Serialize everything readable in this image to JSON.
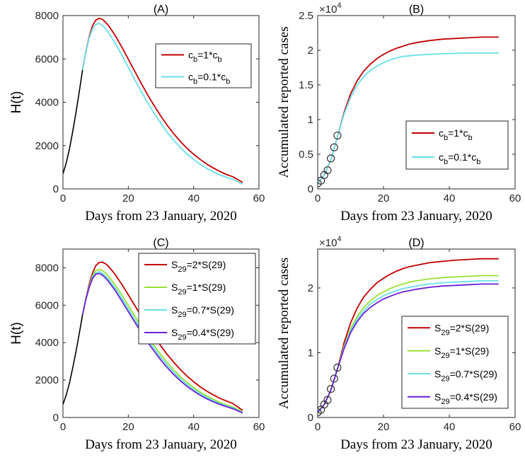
{
  "chart_data": [
    {
      "panel": "A",
      "type": "line",
      "title": "(A)",
      "xlabel": "Days from 23 January, 2020",
      "ylabel": "H(t)",
      "xlim": [
        0,
        60
      ],
      "ylim": [
        0,
        8000
      ],
      "xticks": [
        0,
        20,
        40,
        60
      ],
      "yticks": [
        0,
        2000,
        4000,
        6000,
        8000
      ],
      "legend": "upper-right",
      "series": [
        {
          "name": "c_b=1*c_b",
          "legend_main": "c",
          "legend_sub": "b",
          "legend_rest": "=1*c",
          "legend_sub2": "b",
          "color": "#c00000",
          "x": [
            6,
            7,
            8,
            9,
            10,
            11,
            12,
            13,
            14,
            16,
            18,
            20,
            22,
            24,
            26,
            28,
            30,
            32,
            34,
            36,
            38,
            40,
            42,
            44,
            46,
            48,
            50,
            52,
            55
          ],
          "y": [
            5500,
            6320,
            7000,
            7520,
            7780,
            7880,
            7830,
            7700,
            7530,
            7080,
            6550,
            5990,
            5420,
            4860,
            4320,
            3820,
            3350,
            2920,
            2530,
            2180,
            1870,
            1600,
            1360,
            1150,
            970,
            810,
            670,
            560,
            300
          ]
        },
        {
          "name": "c_b=0.1*c_b",
          "legend_main": "c",
          "legend_sub": "b",
          "legend_rest": "=0.1*c",
          "legend_sub2": "b",
          "color": "#66e0e6",
          "x": [
            6,
            7,
            8,
            9,
            10,
            11,
            12,
            13,
            14,
            16,
            18,
            20,
            22,
            24,
            26,
            28,
            30,
            32,
            34,
            36,
            38,
            40,
            42,
            44,
            46,
            48,
            50,
            52,
            55
          ],
          "y": [
            5500,
            6300,
            6950,
            7380,
            7580,
            7640,
            7560,
            7400,
            7200,
            6720,
            6180,
            5610,
            5040,
            4490,
            3960,
            3470,
            3020,
            2600,
            2230,
            1900,
            1610,
            1360,
            1140,
            950,
            790,
            650,
            540,
            440,
            220
          ]
        }
      ],
      "history": {
        "color": "#000000",
        "x": [
          0,
          1,
          2,
          3,
          4,
          5,
          6
        ],
        "y": [
          700,
          1200,
          1850,
          2650,
          3550,
          4500,
          5500
        ]
      }
    },
    {
      "panel": "B",
      "type": "line",
      "title": "(B)",
      "xlabel": "Days from 23 January, 2020",
      "ylabel": "Accumulated reported cases",
      "exponent_base": "×10",
      "exponent_power": "4",
      "xlim": [
        0,
        60
      ],
      "ylim": [
        0,
        2.5
      ],
      "xticks": [
        0,
        20,
        40,
        60
      ],
      "yticks": [
        0,
        0.5,
        1,
        1.5,
        2,
        2.5
      ],
      "ytick_labels": [
        "0",
        "0.5",
        "1",
        "1.5",
        "2",
        "2.5"
      ],
      "legend": "lower-right",
      "series": [
        {
          "name": "c_b=1*c_b",
          "legend_main": "c",
          "legend_sub": "b",
          "legend_rest": "=1*c",
          "legend_sub2": "b",
          "color": "#c00000",
          "x": [
            0,
            2,
            4,
            6,
            8,
            10,
            12,
            14,
            16,
            18,
            20,
            22,
            24,
            26,
            28,
            30,
            34,
            38,
            42,
            46,
            50,
            55
          ],
          "y": [
            0.08,
            0.2,
            0.42,
            0.75,
            1.1,
            1.37,
            1.56,
            1.7,
            1.8,
            1.88,
            1.94,
            1.99,
            2.03,
            2.06,
            2.09,
            2.11,
            2.14,
            2.16,
            2.17,
            2.18,
            2.19,
            2.19
          ]
        },
        {
          "name": "c_b=0.1*c_b",
          "legend_main": "c",
          "legend_sub": "b",
          "legend_rest": "=0.1*c",
          "legend_sub2": "b",
          "color": "#66e0e6",
          "x": [
            0,
            2,
            4,
            6,
            8,
            10,
            12,
            14,
            16,
            18,
            20,
            22,
            24,
            26,
            28,
            30,
            34,
            38,
            42,
            46,
            50,
            55
          ],
          "y": [
            0.08,
            0.2,
            0.42,
            0.75,
            1.08,
            1.32,
            1.5,
            1.62,
            1.71,
            1.77,
            1.82,
            1.86,
            1.89,
            1.91,
            1.92,
            1.93,
            1.94,
            1.95,
            1.955,
            1.96,
            1.96,
            1.96
          ]
        }
      ],
      "observed": {
        "marker": "circle",
        "x": [
          0,
          1,
          2,
          3,
          4,
          5,
          6
        ],
        "y": [
          0.08,
          0.12,
          0.2,
          0.27,
          0.44,
          0.6,
          0.77
        ]
      }
    },
    {
      "panel": "C",
      "type": "line",
      "title": "(C)",
      "xlabel": "Days from 23 January, 2020",
      "ylabel": "H(t)",
      "xlim": [
        0,
        60
      ],
      "ylim": [
        0,
        9000
      ],
      "xticks": [
        0,
        20,
        40,
        60
      ],
      "yticks": [
        0,
        2000,
        4000,
        6000,
        8000
      ],
      "legend": "upper-right",
      "series": [
        {
          "name": "S_29=2*S(29)",
          "legend_main": "S",
          "legend_sub": "29",
          "legend_rest": "=2*S(29)",
          "color": "#c00000",
          "x": [
            6,
            7,
            8,
            9,
            10,
            11,
            12,
            13,
            14,
            16,
            18,
            20,
            22,
            24,
            26,
            28,
            30,
            32,
            34,
            36,
            38,
            40,
            42,
            44,
            46,
            48,
            50,
            52,
            55
          ],
          "y": [
            5500,
            6350,
            7100,
            7700,
            8100,
            8280,
            8300,
            8220,
            8070,
            7640,
            7120,
            6560,
            5980,
            5400,
            4840,
            4310,
            3810,
            3350,
            2930,
            2550,
            2210,
            1910,
            1640,
            1410,
            1210,
            1030,
            880,
            750,
            380
          ]
        },
        {
          "name": "S_29=1*S(29)",
          "legend_main": "S",
          "legend_sub": "29",
          "legend_rest": "=1*S(29)",
          "color": "#99e033",
          "x": [
            6,
            7,
            8,
            9,
            10,
            11,
            12,
            13,
            14,
            16,
            18,
            20,
            22,
            24,
            26,
            28,
            30,
            32,
            34,
            36,
            38,
            40,
            42,
            44,
            46,
            48,
            50,
            52,
            55
          ],
          "y": [
            5500,
            6330,
            7000,
            7560,
            7840,
            7920,
            7860,
            7720,
            7540,
            7080,
            6550,
            5990,
            5420,
            4860,
            4320,
            3820,
            3350,
            2920,
            2530,
            2180,
            1870,
            1600,
            1360,
            1150,
            970,
            810,
            670,
            560,
            300
          ]
        },
        {
          "name": "S_29=0.7*S(29)",
          "legend_main": "S",
          "legend_sub": "29",
          "legend_rest": "=0.7*S(29)",
          "color": "#66e0e6",
          "x": [
            6,
            7,
            8,
            9,
            10,
            11,
            12,
            13,
            14,
            16,
            18,
            20,
            22,
            24,
            26,
            28,
            30,
            32,
            34,
            36,
            38,
            40,
            42,
            44,
            46,
            48,
            50,
            52,
            55
          ],
          "y": [
            5500,
            6310,
            6960,
            7480,
            7730,
            7790,
            7720,
            7570,
            7380,
            6910,
            6370,
            5810,
            5240,
            4690,
            4160,
            3660,
            3200,
            2780,
            2400,
            2060,
            1760,
            1500,
            1270,
            1070,
            900,
            750,
            620,
            510,
            270
          ]
        },
        {
          "name": "S_29=0.4*S(29)",
          "legend_main": "S",
          "legend_sub": "29",
          "legend_rest": "=0.4*S(29)",
          "color": "#6a1fd6",
          "x": [
            6,
            7,
            8,
            9,
            10,
            11,
            12,
            13,
            14,
            16,
            18,
            20,
            22,
            24,
            26,
            28,
            30,
            32,
            34,
            36,
            38,
            40,
            42,
            44,
            46,
            48,
            50,
            52,
            55
          ],
          "y": [
            5500,
            6300,
            6930,
            7420,
            7650,
            7700,
            7620,
            7460,
            7260,
            6780,
            6230,
            5660,
            5090,
            4540,
            4010,
            3520,
            3060,
            2650,
            2280,
            1950,
            1660,
            1410,
            1190,
            1000,
            840,
            700,
            580,
            470,
            240
          ]
        }
      ],
      "history": {
        "color": "#000000",
        "x": [
          0,
          1,
          2,
          3,
          4,
          5,
          6
        ],
        "y": [
          700,
          1200,
          1850,
          2650,
          3550,
          4500,
          5500
        ]
      }
    },
    {
      "panel": "D",
      "type": "line",
      "title": "(D)",
      "xlabel": "Days from 23 January, 2020",
      "ylabel": "Accumulated reported cases",
      "exponent_base": "×10",
      "exponent_power": "4",
      "xlim": [
        0,
        60
      ],
      "ylim": [
        0,
        2.6
      ],
      "xticks": [
        0,
        20,
        40,
        60
      ],
      "yticks": [
        0,
        1,
        2
      ],
      "ytick_labels": [
        "0",
        "1",
        "2"
      ],
      "legend": "lower-right",
      "series": [
        {
          "name": "S_29=2*S(29)",
          "legend_main": "S",
          "legend_sub": "29",
          "legend_rest": "=2*S(29)",
          "color": "#c00000",
          "x": [
            0,
            2,
            4,
            6,
            8,
            10,
            12,
            14,
            16,
            18,
            20,
            22,
            24,
            26,
            28,
            30,
            34,
            38,
            42,
            46,
            50,
            55
          ],
          "y": [
            0.08,
            0.2,
            0.42,
            0.75,
            1.15,
            1.46,
            1.69,
            1.86,
            1.98,
            2.08,
            2.15,
            2.21,
            2.26,
            2.3,
            2.33,
            2.35,
            2.39,
            2.41,
            2.43,
            2.44,
            2.45,
            2.45
          ]
        },
        {
          "name": "S_29=1*S(29)",
          "legend_main": "S",
          "legend_sub": "29",
          "legend_rest": "=1*S(29)",
          "color": "#99e033",
          "x": [
            0,
            2,
            4,
            6,
            8,
            10,
            12,
            14,
            16,
            18,
            20,
            22,
            24,
            26,
            28,
            30,
            34,
            38,
            42,
            46,
            50,
            55
          ],
          "y": [
            0.08,
            0.2,
            0.42,
            0.75,
            1.1,
            1.37,
            1.56,
            1.7,
            1.8,
            1.88,
            1.94,
            1.99,
            2.03,
            2.06,
            2.09,
            2.11,
            2.14,
            2.16,
            2.17,
            2.18,
            2.19,
            2.19
          ]
        },
        {
          "name": "S_29=0.7*S(29)",
          "legend_main": "S",
          "legend_sub": "29",
          "legend_rest": "=0.7*S(29)",
          "color": "#66e0e6",
          "x": [
            0,
            2,
            4,
            6,
            8,
            10,
            12,
            14,
            16,
            18,
            20,
            22,
            24,
            26,
            28,
            30,
            34,
            38,
            42,
            46,
            50,
            55
          ],
          "y": [
            0.08,
            0.2,
            0.42,
            0.75,
            1.08,
            1.34,
            1.52,
            1.65,
            1.75,
            1.82,
            1.88,
            1.92,
            1.96,
            1.99,
            2.01,
            2.03,
            2.06,
            2.08,
            2.09,
            2.1,
            2.11,
            2.11
          ]
        },
        {
          "name": "S_29=0.4*S(29)",
          "legend_main": "S",
          "legend_sub": "29",
          "legend_rest": "=0.4*S(29)",
          "color": "#6a1fd6",
          "x": [
            0,
            2,
            4,
            6,
            8,
            10,
            12,
            14,
            16,
            18,
            20,
            22,
            24,
            26,
            28,
            30,
            34,
            38,
            42,
            46,
            50,
            55
          ],
          "y": [
            0.08,
            0.2,
            0.42,
            0.75,
            1.06,
            1.31,
            1.48,
            1.61,
            1.7,
            1.77,
            1.83,
            1.87,
            1.91,
            1.94,
            1.96,
            1.98,
            2.01,
            2.03,
            2.04,
            2.05,
            2.06,
            2.06
          ]
        }
      ],
      "observed": {
        "marker": "circle",
        "x": [
          0,
          1,
          2,
          3,
          4,
          5,
          6
        ],
        "y": [
          0.08,
          0.12,
          0.2,
          0.27,
          0.44,
          0.6,
          0.77
        ]
      }
    }
  ]
}
